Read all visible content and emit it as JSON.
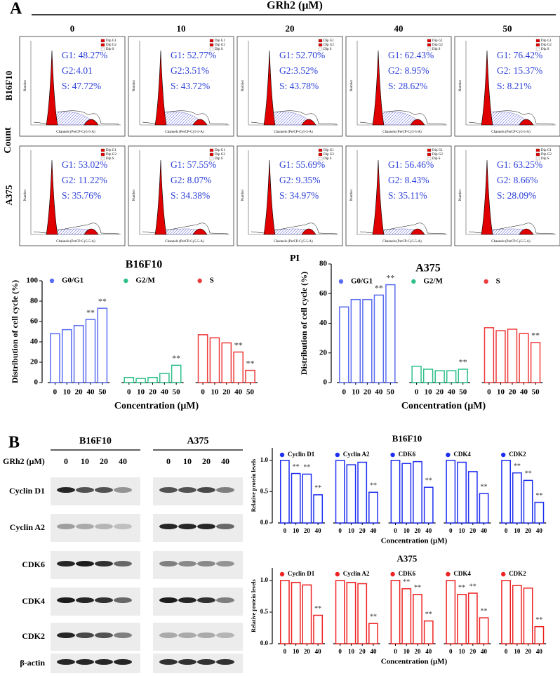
{
  "panel_a": {
    "label": "A",
    "treatment": "GRh2 (μM)",
    "doses": [
      "0",
      "10",
      "20",
      "40",
      "50"
    ],
    "y_label": "Count",
    "x_label": "PI",
    "hist_x_label": "Channels (PerCP-Cy5-5-A)",
    "hist_y_label": "Number",
    "hist_legend": [
      "Dip G1",
      "Dip G2",
      "Dip S"
    ],
    "rows": [
      {
        "name": "B16F10",
        "cells": [
          [
            "G1: 48.27%",
            "G2:4.01",
            "S: 47.72%"
          ],
          [
            "G1: 52.77%",
            "G2:3.51%",
            "S: 43.72%"
          ],
          [
            "G1: 52.70%",
            "G2:3.52%",
            "S: 43.78%"
          ],
          [
            "G1: 62.43%",
            "G2: 8.95%",
            "S: 28.62%"
          ],
          [
            "G1: 76.42%",
            "G2: 15.37%",
            "S: 8.21%"
          ]
        ]
      },
      {
        "name": "A375",
        "cells": [
          [
            "G1: 53.02%",
            "G2: 11.22%",
            "S: 35.76%"
          ],
          [
            "G1: 57.55%",
            "G2: 8.07%",
            "S: 34.38%"
          ],
          [
            "G1: 55.69%",
            "G2: 9.35%",
            "S: 34.97%"
          ],
          [
            "G1: 56.46%",
            "G2: 8.43%",
            "S: 35.11%"
          ],
          [
            "G1: 63.25%",
            "G2: 8.66%",
            "S: 28.09%"
          ]
        ]
      }
    ]
  },
  "chart_data": [
    {
      "type": "bar",
      "title": "B16F10",
      "y_label": "Distribution of cell cycle (%)",
      "x_label": "Concentration (μM)",
      "categories": [
        "0",
        "10",
        "20",
        "40",
        "50"
      ],
      "ylim": [
        0,
        100
      ],
      "yticks": [
        0,
        20,
        40,
        60,
        80,
        100
      ],
      "series": [
        {
          "name": "G0/G1",
          "color": "#5a6cf0",
          "values": [
            48,
            52,
            56,
            62,
            73
          ],
          "significance": [
            null,
            null,
            null,
            "**",
            "**"
          ]
        },
        {
          "name": "G2/M",
          "color": "#2fc08a",
          "values": [
            5,
            4,
            5,
            9,
            17
          ],
          "significance": [
            null,
            null,
            null,
            null,
            "**"
          ]
        },
        {
          "name": "S",
          "color": "#ee3b3b",
          "values": [
            47,
            44,
            39,
            30,
            12
          ],
          "significance": [
            null,
            null,
            null,
            "**",
            "**"
          ]
        }
      ]
    },
    {
      "type": "bar",
      "title": "A375",
      "y_label": "Distribution of cell cycle (%)",
      "x_label": "Concentration (μM)",
      "categories": [
        "0",
        "10",
        "20",
        "40",
        "50"
      ],
      "ylim": [
        0,
        80
      ],
      "yticks": [
        0,
        20,
        40,
        60,
        80
      ],
      "series": [
        {
          "name": "G0/G1",
          "color": "#5a6cf0",
          "values": [
            51,
            56,
            56,
            59,
            66
          ],
          "significance": [
            null,
            null,
            null,
            "**",
            "**"
          ]
        },
        {
          "name": "G2/M",
          "color": "#2fc08a",
          "values": [
            11,
            9,
            8,
            8,
            9
          ],
          "significance": [
            null,
            null,
            null,
            null,
            "**"
          ]
        },
        {
          "name": "S",
          "color": "#ee3b3b",
          "values": [
            37,
            35,
            36,
            33,
            27
          ],
          "significance": [
            null,
            null,
            null,
            null,
            "**"
          ]
        }
      ]
    },
    {
      "type": "bar",
      "title": "B16F10",
      "y_label": "Relative protein levels",
      "x_label": "Concentration (μM)",
      "categories": [
        "0",
        "10",
        "20",
        "40"
      ],
      "ylim": [
        0,
        1.2
      ],
      "yticks": [
        {
          "value": 0,
          "label": "0.0"
        },
        {
          "value": 0.5,
          "label": "0.5"
        },
        {
          "value": 1,
          "label": "1.0"
        }
      ],
      "series": [
        {
          "name": "Cyclin D1",
          "color": "#1f2ff0",
          "values": [
            1.0,
            0.79,
            0.78,
            0.45
          ],
          "significance": [
            null,
            "**",
            "**",
            "**"
          ]
        },
        {
          "name": "Cyclin A2",
          "color": "#1f2ff0",
          "values": [
            1.0,
            0.93,
            0.97,
            0.49
          ],
          "significance": [
            null,
            null,
            null,
            "**"
          ]
        },
        {
          "name": "CDK6",
          "color": "#1f2ff0",
          "values": [
            1.0,
            0.95,
            0.98,
            0.57
          ],
          "significance": [
            null,
            null,
            null,
            "**"
          ]
        },
        {
          "name": "CDK4",
          "color": "#1f2ff0",
          "values": [
            1.0,
            0.97,
            0.82,
            0.47
          ],
          "significance": [
            null,
            null,
            null,
            "**"
          ]
        },
        {
          "name": "CDK2",
          "color": "#1f2ff0",
          "values": [
            1.0,
            0.8,
            0.68,
            0.33
          ],
          "significance": [
            null,
            "**",
            "**",
            "**"
          ]
        }
      ]
    },
    {
      "type": "bar",
      "title": "A375",
      "y_label": "Relative protein levels",
      "x_label": "Concentration (μM)",
      "categories": [
        "0",
        "10",
        "20",
        "40"
      ],
      "ylim": [
        0,
        1.2
      ],
      "yticks": [
        {
          "value": 0,
          "label": "0.0"
        },
        {
          "value": 0.5,
          "label": "0.5"
        },
        {
          "value": 1,
          "label": "1.0"
        }
      ],
      "series": [
        {
          "name": "Cyclin D1",
          "color": "#ee2222",
          "values": [
            1.0,
            0.97,
            0.93,
            0.45
          ],
          "significance": [
            null,
            null,
            null,
            "**"
          ]
        },
        {
          "name": "Cyclin A2",
          "color": "#ee2222",
          "values": [
            1.0,
            0.97,
            0.95,
            0.32
          ],
          "significance": [
            null,
            null,
            null,
            "**"
          ]
        },
        {
          "name": "CDK6",
          "color": "#ee2222",
          "values": [
            1.0,
            0.87,
            0.78,
            0.36
          ],
          "significance": [
            null,
            "**",
            "**",
            "**"
          ]
        },
        {
          "name": "CDK4",
          "color": "#ee2222",
          "values": [
            1.0,
            0.78,
            0.8,
            0.41
          ],
          "significance": [
            null,
            "**",
            "**",
            "**"
          ]
        },
        {
          "name": "CDK2",
          "color": "#ee2222",
          "values": [
            1.0,
            0.92,
            0.88,
            0.27
          ],
          "significance": [
            null,
            null,
            null,
            "**"
          ]
        }
      ]
    }
  ],
  "panel_b": {
    "label": "B",
    "treatment": "GRh2 (μM)",
    "cell_lines": [
      "B16F10",
      "A375"
    ],
    "doses": [
      "0",
      "10",
      "20",
      "40"
    ],
    "proteins": [
      "Cyclin D1",
      "Cyclin A2",
      "CDK6",
      "CDK4",
      "CDK2",
      "β-actin"
    ]
  }
}
